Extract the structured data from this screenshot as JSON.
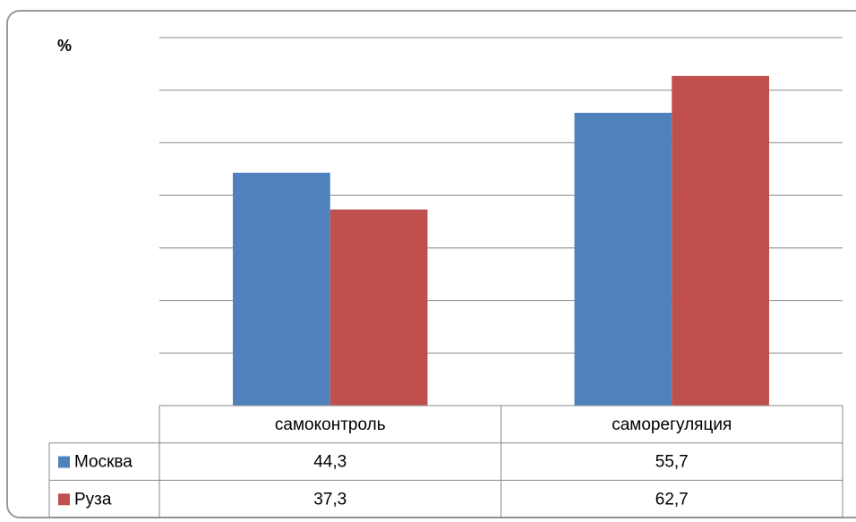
{
  "chart_data": {
    "type": "bar",
    "y_label": "%",
    "categories": [
      "самоконтроль",
      "саморегуляция"
    ],
    "series": [
      {
        "name": "Москва",
        "color": "#4f81bd",
        "values": [
          44.3,
          55.7
        ],
        "value_labels": [
          "44,3",
          "55,7"
        ]
      },
      {
        "name": "Руза",
        "color": "#c0504d",
        "values": [
          37.3,
          62.7
        ],
        "value_labels": [
          "37,3",
          "62,7"
        ]
      }
    ],
    "ylim": [
      0,
      70
    ],
    "yticks": [
      0,
      10,
      20,
      30,
      40,
      50,
      60,
      70
    ],
    "grid": true,
    "legend": "table"
  }
}
